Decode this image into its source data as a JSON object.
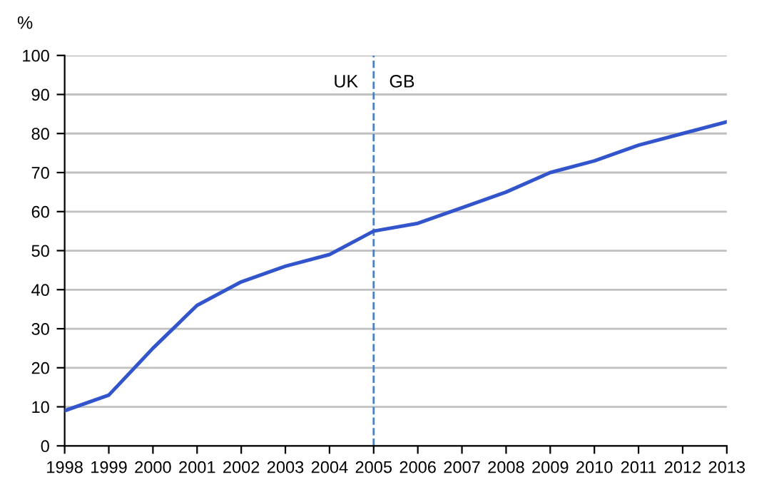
{
  "chart_data": {
    "type": "line",
    "ylabel": "%",
    "x": [
      1998,
      1999,
      2000,
      2001,
      2002,
      2003,
      2004,
      2005,
      2006,
      2007,
      2008,
      2009,
      2010,
      2011,
      2012,
      2013
    ],
    "series": [
      {
        "color": "#3355cc",
        "values": [
          9,
          13,
          25,
          36,
          42,
          46,
          49,
          55,
          57,
          61,
          65,
          70,
          73,
          77,
          80,
          83
        ]
      }
    ],
    "xlim": [
      1998,
      2013
    ],
    "xticks": [
      1998,
      1999,
      2000,
      2001,
      2002,
      2003,
      2004,
      2005,
      2006,
      2007,
      2008,
      2009,
      2010,
      2011,
      2012,
      2013
    ],
    "ylim": [
      0,
      100
    ],
    "yticks": [
      0,
      10,
      20,
      30,
      40,
      50,
      60,
      70,
      80,
      90,
      100
    ],
    "grid": "y",
    "legend": false,
    "marker": "none",
    "line_style": "solid",
    "ref_lines": [
      {
        "axis": "x",
        "value": 2005,
        "color": "#4a7fc0",
        "line_style": "dashed"
      }
    ],
    "annotations": [
      "UK",
      "GB"
    ]
  }
}
